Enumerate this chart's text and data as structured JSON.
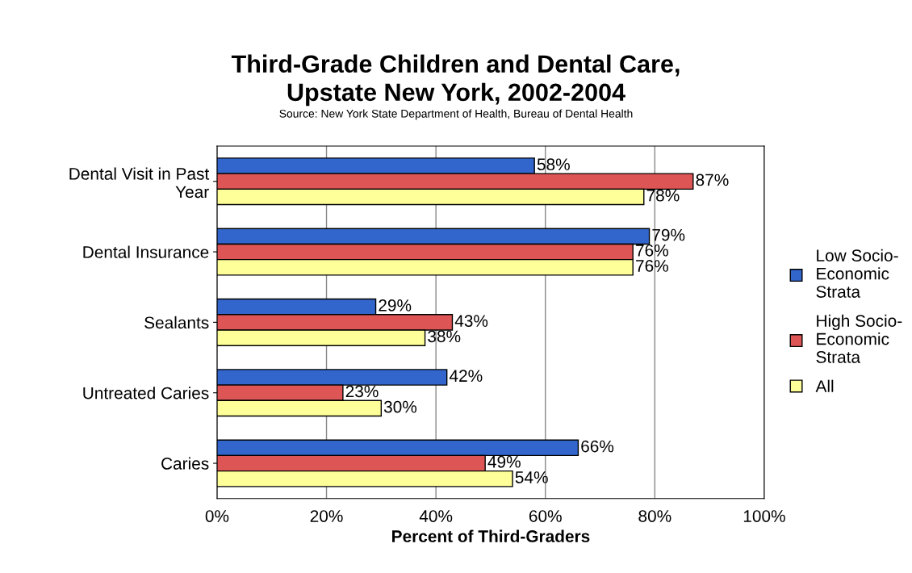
{
  "chart_data": {
    "type": "bar",
    "orientation": "horizontal",
    "title": "Third-Grade Children and Dental Care,\nUpstate New York, 2002-2004",
    "subtitle": "Source: New York State Department of Health, Bureau of Dental Health",
    "xlabel": "Percent of Third-Graders",
    "categories": [
      "Dental Visit in Past\nYear",
      "Dental Insurance",
      "Sealants",
      "Untreated Caries",
      "Caries"
    ],
    "series": [
      {
        "name": "Low Socio-\nEconomic\nStrata",
        "color": "#3366cc",
        "values": [
          58,
          79,
          29,
          42,
          66
        ],
        "value_labels": [
          "58%",
          "79%",
          "29%",
          "42%",
          "66%"
        ]
      },
      {
        "name": "High Socio-\nEconomic\nStrata",
        "color": "#dd5555",
        "values": [
          87,
          76,
          43,
          23,
          49
        ],
        "value_labels": [
          "87%",
          "76%",
          "43%",
          "23%",
          "49%"
        ]
      },
      {
        "name": "All",
        "color": "#ffff99",
        "values": [
          78,
          76,
          38,
          30,
          54
        ],
        "value_labels": [
          "78%",
          "76%",
          "38%",
          "30%",
          "54%"
        ]
      }
    ],
    "xlim": [
      0,
      100
    ],
    "xticks": [
      {
        "value": 0,
        "label": "0%"
      },
      {
        "value": 20,
        "label": "20%"
      },
      {
        "value": 40,
        "label": "40%"
      },
      {
        "value": 60,
        "label": "60%"
      },
      {
        "value": 80,
        "label": "80%"
      },
      {
        "value": 100,
        "label": "100%"
      }
    ],
    "grid": "x",
    "legend": "right"
  }
}
